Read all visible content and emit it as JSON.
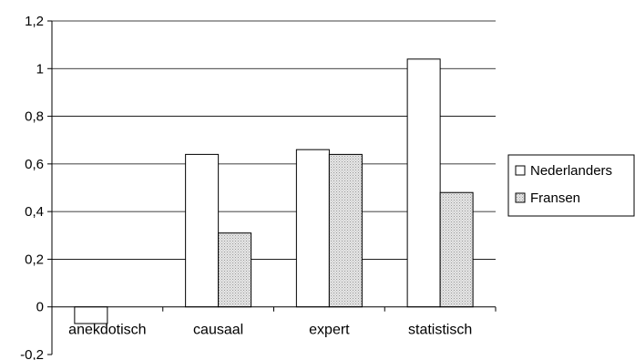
{
  "chart_data": {
    "type": "bar",
    "categories": [
      "anekdotisch",
      "causaal",
      "expert",
      "statistisch"
    ],
    "series": [
      {
        "name": "Nederlanders",
        "values": [
          -0.07,
          0.64,
          0.66,
          1.04
        ],
        "color": "#ffffff"
      },
      {
        "name": "Fransen",
        "values": [
          0,
          0.31,
          0.64,
          0.48
        ],
        "color": "#d9d9d9"
      }
    ],
    "yticks": [
      "-0,2",
      "0",
      "0,2",
      "0,4",
      "0,6",
      "0,8",
      "1",
      "1,2"
    ],
    "ylim": [
      -0.2,
      1.2
    ],
    "grid": true,
    "legend_position": "right"
  }
}
